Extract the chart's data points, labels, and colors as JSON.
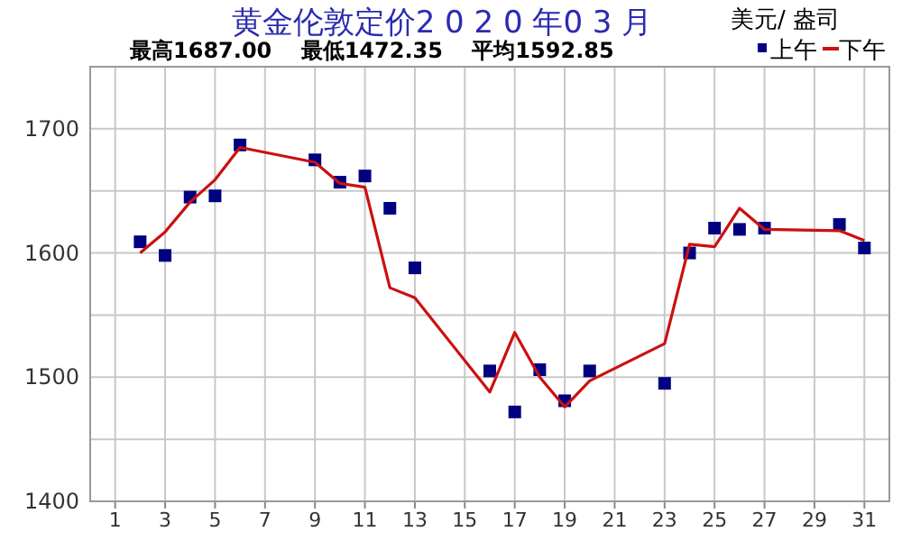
{
  "chart_data": {
    "type": "line",
    "title": "黄金伦敦定价2 0 2 0 年0 3 月",
    "subtitle": "最高1687.00　 最低1472.35　 平均1592.85",
    "ylabel": "美元/ 盎司",
    "xlim": [
      0,
      32
    ],
    "xticks": [
      1,
      3,
      5,
      7,
      9,
      11,
      13,
      15,
      17,
      19,
      21,
      23,
      25,
      27,
      29,
      31
    ],
    "ylim": [
      1400,
      1750
    ],
    "yticks": [
      1400,
      {
        "value": 1450,
        "label": null
      },
      1500,
      {
        "value": 1550,
        "label": null
      },
      1600,
      {
        "value": 1650,
        "label": null
      },
      1700
    ],
    "grid": true,
    "legend": "top right",
    "series": [
      {
        "name": "上午",
        "type": "scatter",
        "marker": "square",
        "color": "#000080",
        "x": [
          2,
          3,
          4,
          5,
          6,
          9,
          10,
          11,
          12,
          13,
          16,
          17,
          18,
          19,
          20,
          23,
          24,
          25,
          26,
          27,
          30,
          31
        ],
        "values": [
          1609,
          1598,
          1645,
          1646,
          1687,
          1675,
          1657,
          1662,
          1636,
          1588,
          1505,
          1472,
          1506,
          1481,
          1505,
          1495,
          1600,
          1620,
          1619,
          1620,
          1623,
          1604
        ]
      },
      {
        "name": "下午",
        "type": "line",
        "marker": "none",
        "color": "#cc1010",
        "x": [
          2,
          3,
          4,
          5,
          6,
          9,
          10,
          11,
          12,
          13,
          16,
          17,
          18,
          19,
          20,
          23,
          24,
          25,
          26,
          27,
          30,
          31
        ],
        "values": [
          1600,
          1617,
          1641,
          1659,
          1685,
          1673,
          1656,
          1653,
          1572,
          1564,
          1488,
          1536,
          1500,
          1476,
          1497,
          1527,
          1607,
          1605,
          1636,
          1619,
          1618,
          1610
        ]
      }
    ]
  }
}
